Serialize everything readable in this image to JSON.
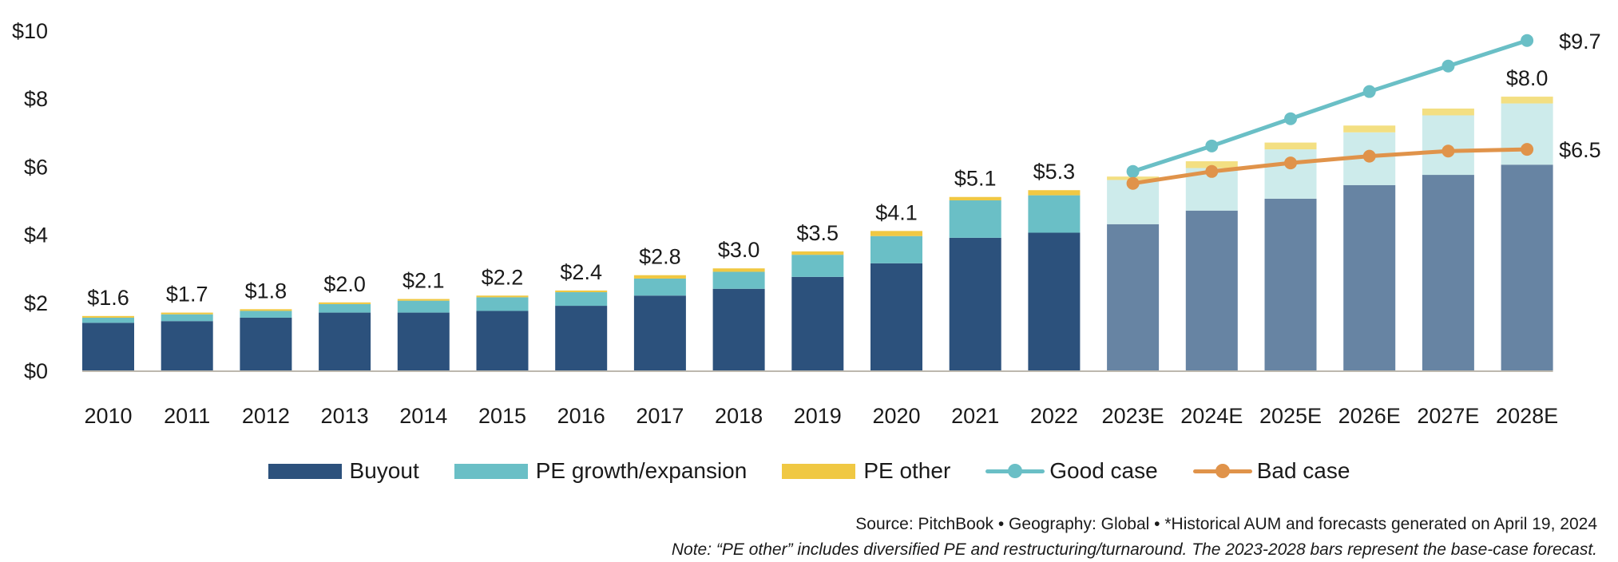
{
  "chart_data": {
    "type": "bar",
    "stacked": true,
    "title": "",
    "xlabel": "",
    "ylabel": "",
    "ylim": [
      0,
      10
    ],
    "yticks": [
      0,
      2,
      4,
      6,
      8,
      10
    ],
    "ytick_labels": [
      "$0",
      "$2",
      "$4",
      "$6",
      "$8",
      "$10"
    ],
    "grid": false,
    "legend_position": "bottom-center",
    "categories": [
      "2010",
      "2011",
      "2012",
      "2013",
      "2014",
      "2015",
      "2016",
      "2017",
      "2018",
      "2019",
      "2020",
      "2021",
      "2022",
      "2023E",
      "2024E",
      "2025E",
      "2026E",
      "2027E",
      "2028E"
    ],
    "forecast_start_index": 13,
    "series": [
      {
        "name": "Buyout",
        "color": "#2c517c",
        "forecast_color": "#6784a3",
        "values": [
          1.4,
          1.45,
          1.55,
          1.7,
          1.7,
          1.75,
          1.9,
          2.2,
          2.4,
          2.75,
          3.15,
          3.9,
          4.05,
          4.3,
          4.7,
          5.05,
          5.45,
          5.75,
          6.05
        ]
      },
      {
        "name": "PE growth/expansion",
        "color": "#6abfc6",
        "forecast_color": "#cdebeb",
        "values": [
          0.15,
          0.2,
          0.2,
          0.25,
          0.35,
          0.4,
          0.4,
          0.5,
          0.5,
          0.65,
          0.8,
          1.1,
          1.1,
          1.3,
          1.25,
          1.45,
          1.55,
          1.75,
          1.8
        ]
      },
      {
        "name": "PE other",
        "color": "#f0c843",
        "forecast_color": "#f3df82",
        "values": [
          0.05,
          0.05,
          0.05,
          0.05,
          0.05,
          0.05,
          0.05,
          0.1,
          0.1,
          0.1,
          0.15,
          0.1,
          0.15,
          0.1,
          0.2,
          0.2,
          0.2,
          0.2,
          0.2
        ]
      }
    ],
    "totals_labels": [
      "$1.6",
      "$1.7",
      "$1.8",
      "$2.0",
      "$2.1",
      "$2.2",
      "$2.4",
      "$2.8",
      "$3.0",
      "$3.5",
      "$4.1",
      "$5.1",
      "$5.3",
      "",
      "",
      "",
      "",
      "",
      "$8.0"
    ],
    "lines": [
      {
        "name": "Good case",
        "color": "#6abfc6",
        "start_index": 13,
        "values": [
          5.85,
          6.6,
          7.4,
          8.2,
          8.95,
          9.7
        ],
        "end_label": "$9.7"
      },
      {
        "name": "Bad case",
        "color": "#e0934a",
        "start_index": 13,
        "values": [
          5.5,
          5.85,
          6.1,
          6.3,
          6.45,
          6.5
        ],
        "end_label": "$6.5"
      }
    ]
  },
  "legend": [
    {
      "label": "Buyout",
      "kind": "bar",
      "color": "#2c517c"
    },
    {
      "label": "PE growth/expansion",
      "kind": "bar",
      "color": "#6abfc6"
    },
    {
      "label": "PE other",
      "kind": "bar",
      "color": "#f0c843"
    },
    {
      "label": "Good case",
      "kind": "line",
      "color": "#6abfc6"
    },
    {
      "label": "Bad case",
      "kind": "line",
      "color": "#e0934a"
    }
  ],
  "footer": {
    "source": "Source: PitchBook  •  Geography: Global  •  *Historical AUM and forecasts generated on April 19, 2024",
    "note": "Note: “PE other” includes diversified PE and restructuring/turnaround. The 2023-2028 bars represent the base-case forecast."
  }
}
